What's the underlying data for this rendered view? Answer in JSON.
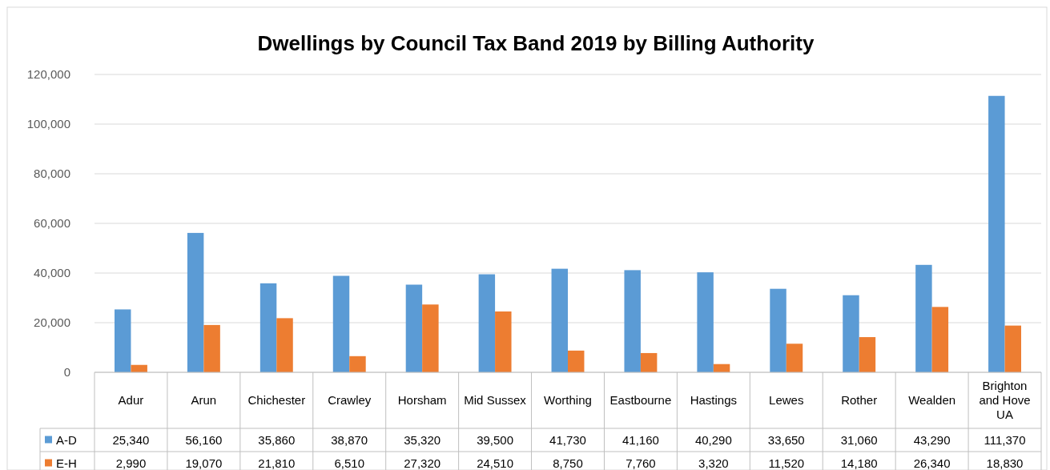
{
  "chart_data": {
    "type": "bar",
    "title": "Dwellings by Council Tax Band 2019 by Billing Authority",
    "categories": [
      "Adur",
      "Arun",
      "Chichester",
      "Crawley",
      "Horsham",
      "Mid Sussex",
      "Worthing",
      "Eastbourne",
      "Hastings",
      "Lewes",
      "Rother",
      "Wealden",
      "Brighton and Hove UA"
    ],
    "series": [
      {
        "name": "A-D",
        "color": "#5b9bd5",
        "values": [
          25340,
          56160,
          35860,
          38870,
          35320,
          39500,
          41730,
          41160,
          40290,
          33650,
          31060,
          43290,
          111370
        ],
        "value_labels": [
          "25,340",
          "56,160",
          "35,860",
          "38,870",
          "35,320",
          "39,500",
          "41,730",
          "41,160",
          "40,290",
          "33,650",
          "31,060",
          "43,290",
          "111,370"
        ]
      },
      {
        "name": "E-H",
        "color": "#ed7d31",
        "values": [
          2990,
          19070,
          21810,
          6510,
          27320,
          24510,
          8750,
          7760,
          3320,
          11520,
          14180,
          26340,
          18830
        ],
        "value_labels": [
          "2,990",
          "19,070",
          "21,810",
          "6,510",
          "27,320",
          "24,510",
          "8,750",
          "7,760",
          "3,320",
          "11,520",
          "14,180",
          "26,340",
          "18,830"
        ]
      }
    ],
    "ylim": [
      0,
      120000
    ],
    "yticks": [
      {
        "value": 0,
        "label": "0"
      },
      {
        "value": 20000,
        "label": "20,000"
      },
      {
        "value": 40000,
        "label": "40,000"
      },
      {
        "value": 60000,
        "label": "60,000"
      },
      {
        "value": 80000,
        "label": "80,000"
      },
      {
        "value": 100000,
        "label": "100,000"
      },
      {
        "value": 120000,
        "label": "120,000"
      }
    ],
    "grid": "y",
    "legend": "bottom left"
  }
}
